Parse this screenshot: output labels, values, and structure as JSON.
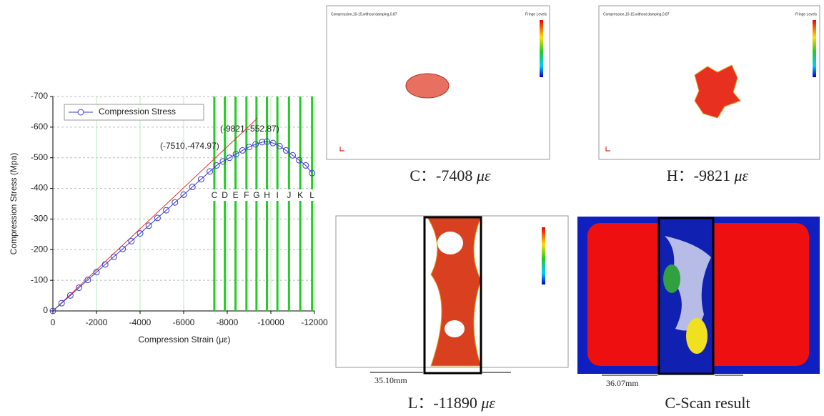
{
  "chart_data": {
    "type": "line",
    "x_label": "Compression Strain (με)",
    "y_label": "Compression Stress (Mpa)",
    "xlim": [
      0,
      -12000
    ],
    "xticks": [
      0,
      -2000,
      -4000,
      -6000,
      -8000,
      -10000,
      -12000
    ],
    "ylim": [
      0,
      -700
    ],
    "yticks": [
      0,
      -100,
      -200,
      -300,
      -400,
      -500,
      -600,
      -700
    ],
    "grid": true,
    "legend": "upper left",
    "x": [
      0,
      -400,
      -800,
      -1200,
      -1600,
      -2000,
      -2400,
      -2800,
      -3200,
      -3600,
      -4000,
      -4400,
      -4800,
      -5200,
      -5600,
      -6000,
      -6400,
      -6800,
      -7200,
      -7510,
      -7800,
      -8100,
      -8400,
      -8700,
      -9000,
      -9300,
      -9600,
      -9821,
      -10100,
      -10400,
      -10700,
      -11000,
      -11300,
      -11600,
      -11890
    ],
    "series": [
      {
        "name": "Compression Stress",
        "color": "#3a3ad0",
        "values": [
          0,
          -25.3,
          -50.6,
          -75.9,
          -101.2,
          -126.5,
          -151.8,
          -177.0,
          -202.3,
          -227.6,
          -252.9,
          -278.2,
          -303.5,
          -328.8,
          -354.1,
          -379.4,
          -404.7,
          -430.0,
          -455.3,
          -474.97,
          -488,
          -500,
          -512,
          -524,
          -535,
          -544,
          -551,
          -552.87,
          -548,
          -538,
          -524,
          -508,
          -492,
          -475,
          -450
        ]
      }
    ],
    "trend_line": {
      "color": "#e03030",
      "x": [
        0,
        -9400
      ],
      "y": [
        0,
        -630
      ]
    },
    "stages": {
      "color": "#22cc22",
      "labels": [
        "C",
        "D",
        "E",
        "F",
        "G",
        "H",
        "I",
        "J",
        "K",
        "L"
      ],
      "x": [
        -7408,
        -7890,
        -8380,
        -8880,
        -9340,
        -9821,
        -10300,
        -10830,
        -11350,
        -11890
      ]
    },
    "annotations": [
      "(-9821,-552.87)",
      "(-7510,-474.97)"
    ]
  },
  "panels": [
    {
      "label": "C：-7408",
      "unit": "με",
      "title": "Compression,10-15,without damping,0.87",
      "legend_title": "Fringe Levels"
    },
    {
      "label": "H：-9821",
      "unit": "με",
      "title": "Compression,10-15,without damping,0.87",
      "legend_title": "Fringe Levels"
    },
    {
      "label": "L：-11890",
      "unit": "με",
      "dimension": "35.10mm"
    },
    {
      "label": "C-Scan result",
      "dimension": "36.07mm"
    }
  ]
}
